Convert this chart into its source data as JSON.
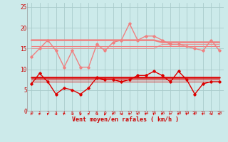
{
  "background_color": "#cceaea",
  "grid_color": "#aacccc",
  "x": [
    0,
    1,
    2,
    3,
    4,
    5,
    6,
    7,
    8,
    9,
    10,
    11,
    12,
    13,
    14,
    15,
    16,
    17,
    18,
    19,
    20,
    21,
    22,
    23
  ],
  "series": [
    {
      "name": "rafales_high",
      "color": "#f08080",
      "linewidth": 1.0,
      "marker": "D",
      "markersize": 1.8,
      "values": [
        13,
        15,
        17,
        14.5,
        10.5,
        14.5,
        10.5,
        10.5,
        16,
        14.5,
        16.5,
        17,
        21,
        17,
        18,
        18,
        17,
        16,
        16,
        15.5,
        15,
        14.5,
        17,
        14.5
      ]
    },
    {
      "name": "flat_high1",
      "color": "#f08080",
      "linewidth": 1.8,
      "marker": null,
      "markersize": 0,
      "values": [
        17,
        17,
        17,
        17,
        17,
        17,
        17,
        17,
        17,
        17,
        17,
        17,
        17,
        17,
        17,
        17,
        16.5,
        16.5,
        16.5,
        16.5,
        16.5,
        16.5,
        16.5,
        16.5
      ]
    },
    {
      "name": "flat_high2",
      "color": "#f08080",
      "linewidth": 0.8,
      "marker": null,
      "markersize": 0,
      "values": [
        15.5,
        15.5,
        15.5,
        15.5,
        15.5,
        15.5,
        15.5,
        15.5,
        15.5,
        15.5,
        15.5,
        15.5,
        15.5,
        15.5,
        15.5,
        15.5,
        15.5,
        15.5,
        15.5,
        15.5,
        15.5,
        15.5,
        15.5,
        15.5
      ]
    },
    {
      "name": "flat_high3",
      "color": "#f08080",
      "linewidth": 0.6,
      "marker": null,
      "markersize": 0,
      "values": [
        15,
        15,
        15,
        15,
        15,
        15,
        15,
        15,
        15,
        15,
        15,
        15,
        15,
        15,
        15,
        15,
        16,
        16,
        16,
        16,
        16,
        16,
        16,
        16
      ]
    },
    {
      "name": "vent_moyen_line",
      "color": "#dd0000",
      "linewidth": 1.0,
      "marker": "D",
      "markersize": 1.8,
      "values": [
        6.5,
        9,
        7,
        4,
        5.5,
        5,
        4,
        5.5,
        8,
        7.5,
        7.5,
        7,
        7.5,
        8.5,
        8.5,
        9.5,
        8.5,
        7,
        9.5,
        7.5,
        4,
        6.5,
        7,
        7
      ]
    },
    {
      "name": "flat_low1",
      "color": "#dd0000",
      "linewidth": 1.8,
      "marker": null,
      "markersize": 0,
      "values": [
        8,
        8,
        8,
        8,
        8,
        8,
        8,
        8,
        8,
        8,
        8,
        8,
        8,
        8,
        8,
        8,
        8,
        8,
        8,
        8,
        8,
        8,
        8,
        8
      ]
    },
    {
      "name": "flat_low2",
      "color": "#dd0000",
      "linewidth": 0.8,
      "marker": null,
      "markersize": 0,
      "values": [
        7.5,
        7.5,
        7.5,
        7.5,
        7.5,
        7.5,
        7.5,
        7.5,
        7.5,
        7.5,
        7.5,
        7.5,
        7.5,
        7.5,
        7.5,
        7.5,
        7.5,
        7.5,
        7.5,
        7.5,
        7.5,
        7.5,
        7.5,
        7.5
      ]
    },
    {
      "name": "flat_low3",
      "color": "#dd0000",
      "linewidth": 0.6,
      "marker": null,
      "markersize": 0,
      "values": [
        7,
        7,
        7,
        7,
        7,
        7,
        7,
        7,
        7,
        7,
        7,
        7,
        7,
        7,
        7,
        7,
        7,
        7,
        7,
        7,
        7,
        7,
        7,
        7
      ]
    }
  ],
  "xlabel": "Vent moyen/en rafales ( km/h )",
  "ylim": [
    0,
    26
  ],
  "yticks": [
    0,
    5,
    10,
    15,
    20,
    25
  ],
  "xlim": [
    -0.5,
    23.5
  ],
  "arrow_color": "#dd0000",
  "wind_angles": [
    225,
    225,
    225,
    270,
    225,
    270,
    315,
    225,
    270,
    315,
    225,
    270,
    225,
    225,
    225,
    225,
    225,
    225,
    225,
    225,
    225,
    225,
    270,
    225
  ]
}
